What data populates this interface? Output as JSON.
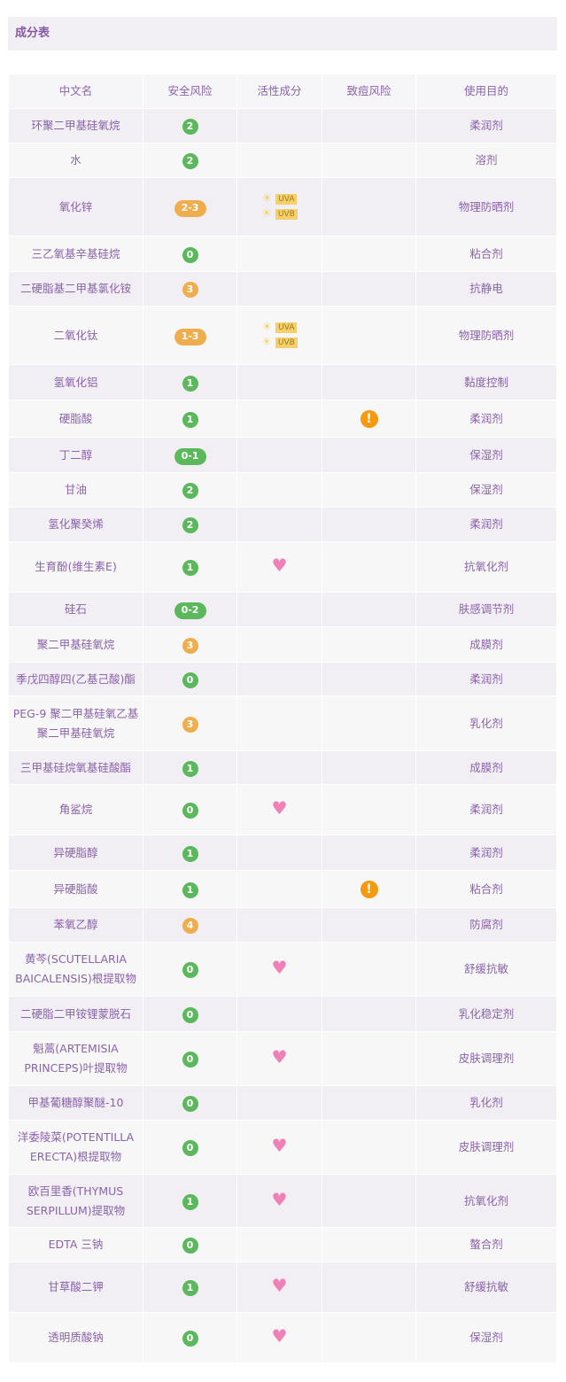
{
  "title": "成分表",
  "columns": [
    "中文名",
    "安全风险",
    "活性成分",
    "致痘风险",
    "使用目的"
  ],
  "colors": {
    "low": "#5cb85c",
    "mid": "#f0ad4e",
    "text": "#8b63a8"
  },
  "rows": [
    {
      "name": "环聚二甲基硅氧烷",
      "risk": "2",
      "level": "low",
      "active": "",
      "acne": false,
      "purpose": "柔润剂",
      "h": 39
    },
    {
      "name": "水",
      "risk": "2",
      "level": "low",
      "active": "",
      "acne": false,
      "purpose": "溶剂",
      "h": 39
    },
    {
      "name": "氧化锌",
      "risk": "2-3",
      "level": "mid",
      "active": "uv",
      "acne": false,
      "purpose": "物理防晒剂",
      "h": 66
    },
    {
      "name": "三乙氧基辛基硅烷",
      "risk": "0",
      "level": "low",
      "active": "",
      "acne": false,
      "purpose": "粘合剂",
      "h": 40
    },
    {
      "name": "二硬脂基二甲基氯化铵",
      "risk": "3",
      "level": "mid",
      "active": "",
      "acne": false,
      "purpose": "抗静电",
      "h": 39
    },
    {
      "name": "二氧化钛",
      "risk": "1-3",
      "level": "mid",
      "active": "uv",
      "acne": false,
      "purpose": "物理防晒剂",
      "h": 66
    },
    {
      "name": "氢氧化铝",
      "risk": "1",
      "level": "low",
      "active": "",
      "acne": false,
      "purpose": "黏度控制",
      "h": 40
    },
    {
      "name": "硬脂酸",
      "risk": "1",
      "level": "low",
      "active": "",
      "acne": true,
      "purpose": "柔润剂",
      "h": 42
    },
    {
      "name": "丁二醇",
      "risk": "0-1",
      "level": "low",
      "active": "",
      "acne": false,
      "purpose": "保湿剂",
      "h": 40
    },
    {
      "name": "甘油",
      "risk": "2",
      "level": "low",
      "active": "",
      "acne": false,
      "purpose": "保湿剂",
      "h": 39
    },
    {
      "name": "氢化聚癸烯",
      "risk": "2",
      "level": "low",
      "active": "",
      "acne": false,
      "purpose": "柔润剂",
      "h": 39
    },
    {
      "name": "生育酚(维生素E)",
      "risk": "1",
      "level": "low",
      "active": "heart",
      "acne": false,
      "purpose": "抗氧化剂",
      "h": 57
    },
    {
      "name": "硅石",
      "risk": "0-2",
      "level": "low",
      "active": "",
      "acne": false,
      "purpose": "肤感调节剂",
      "h": 39
    },
    {
      "name": "聚二甲基硅氧烷",
      "risk": "3",
      "level": "mid",
      "active": "",
      "acne": false,
      "purpose": "成膜剂",
      "h": 40
    },
    {
      "name": "季戊四醇四(乙基己酸)酯",
      "risk": "0",
      "level": "low",
      "active": "",
      "acne": false,
      "purpose": "柔润剂",
      "h": 38
    },
    {
      "name": "PEG-9 聚二甲基硅氧乙基聚二甲基硅氧烷",
      "risk": "3",
      "level": "mid",
      "active": "",
      "acne": false,
      "purpose": "乳化剂",
      "h": 62
    },
    {
      "name": "三甲基硅烷氧基硅酸酯",
      "risk": "1",
      "level": "low",
      "active": "",
      "acne": false,
      "purpose": "成膜剂",
      "h": 38
    },
    {
      "name": "角鲨烷",
      "risk": "0",
      "level": "low",
      "active": "heart",
      "acne": false,
      "purpose": "柔润剂",
      "h": 57
    },
    {
      "name": "异硬脂醇",
      "risk": "1",
      "level": "low",
      "active": "",
      "acne": false,
      "purpose": "柔润剂",
      "h": 40
    },
    {
      "name": "异硬脂酸",
      "risk": "1",
      "level": "low",
      "active": "",
      "acne": true,
      "purpose": "粘合剂",
      "h": 42
    },
    {
      "name": "苯氧乙醇",
      "risk": "4",
      "level": "mid",
      "active": "",
      "acne": false,
      "purpose": "防腐剂",
      "h": 39
    },
    {
      "name": "黄芩(SCUTELLARIA BAICALENSIS)根提取物",
      "risk": "0",
      "level": "low",
      "active": "heart",
      "acne": false,
      "purpose": "舒缓抗敏",
      "h": 61
    },
    {
      "name": "二硬脂二甲铵锂蒙脱石",
      "risk": "0",
      "level": "low",
      "active": "",
      "acne": false,
      "purpose": "乳化稳定剂",
      "h": 40
    },
    {
      "name": "魁蒿(ARTEMISIA PRINCEPS)叶提取物",
      "risk": "0",
      "level": "low",
      "active": "heart",
      "acne": false,
      "purpose": "皮肤调理剂",
      "h": 61
    },
    {
      "name": "甲基葡糖醇聚醚-10",
      "risk": "0",
      "level": "low",
      "active": "",
      "acne": false,
      "purpose": "乳化剂",
      "h": 39
    },
    {
      "name": "洋委陵菜(POTENTILLA ERECTA)根提取物",
      "risk": "0",
      "level": "low",
      "active": "heart",
      "acne": false,
      "purpose": "皮肤调理剂",
      "h": 61
    },
    {
      "name": "欧百里香(THYMUS SERPILLUM)提取物",
      "risk": "1",
      "level": "low",
      "active": "heart",
      "acne": false,
      "purpose": "抗氧化剂",
      "h": 60
    },
    {
      "name": "EDTA 三钠",
      "risk": "0",
      "level": "low",
      "active": "",
      "acne": false,
      "purpose": "螯合剂",
      "h": 39
    },
    {
      "name": "甘草酸二钾",
      "risk": "1",
      "level": "low",
      "active": "heart",
      "acne": false,
      "purpose": "舒缓抗敏",
      "h": 57
    },
    {
      "name": "透明质酸钠",
      "risk": "0",
      "level": "low",
      "active": "heart",
      "acne": false,
      "purpose": "保湿剂",
      "h": 57
    }
  ],
  "uv_labels": [
    "UVA",
    "UVB"
  ],
  "icons": {
    "sun": "sun-icon",
    "heart": "heart-icon",
    "acne": "exclamation-icon"
  }
}
